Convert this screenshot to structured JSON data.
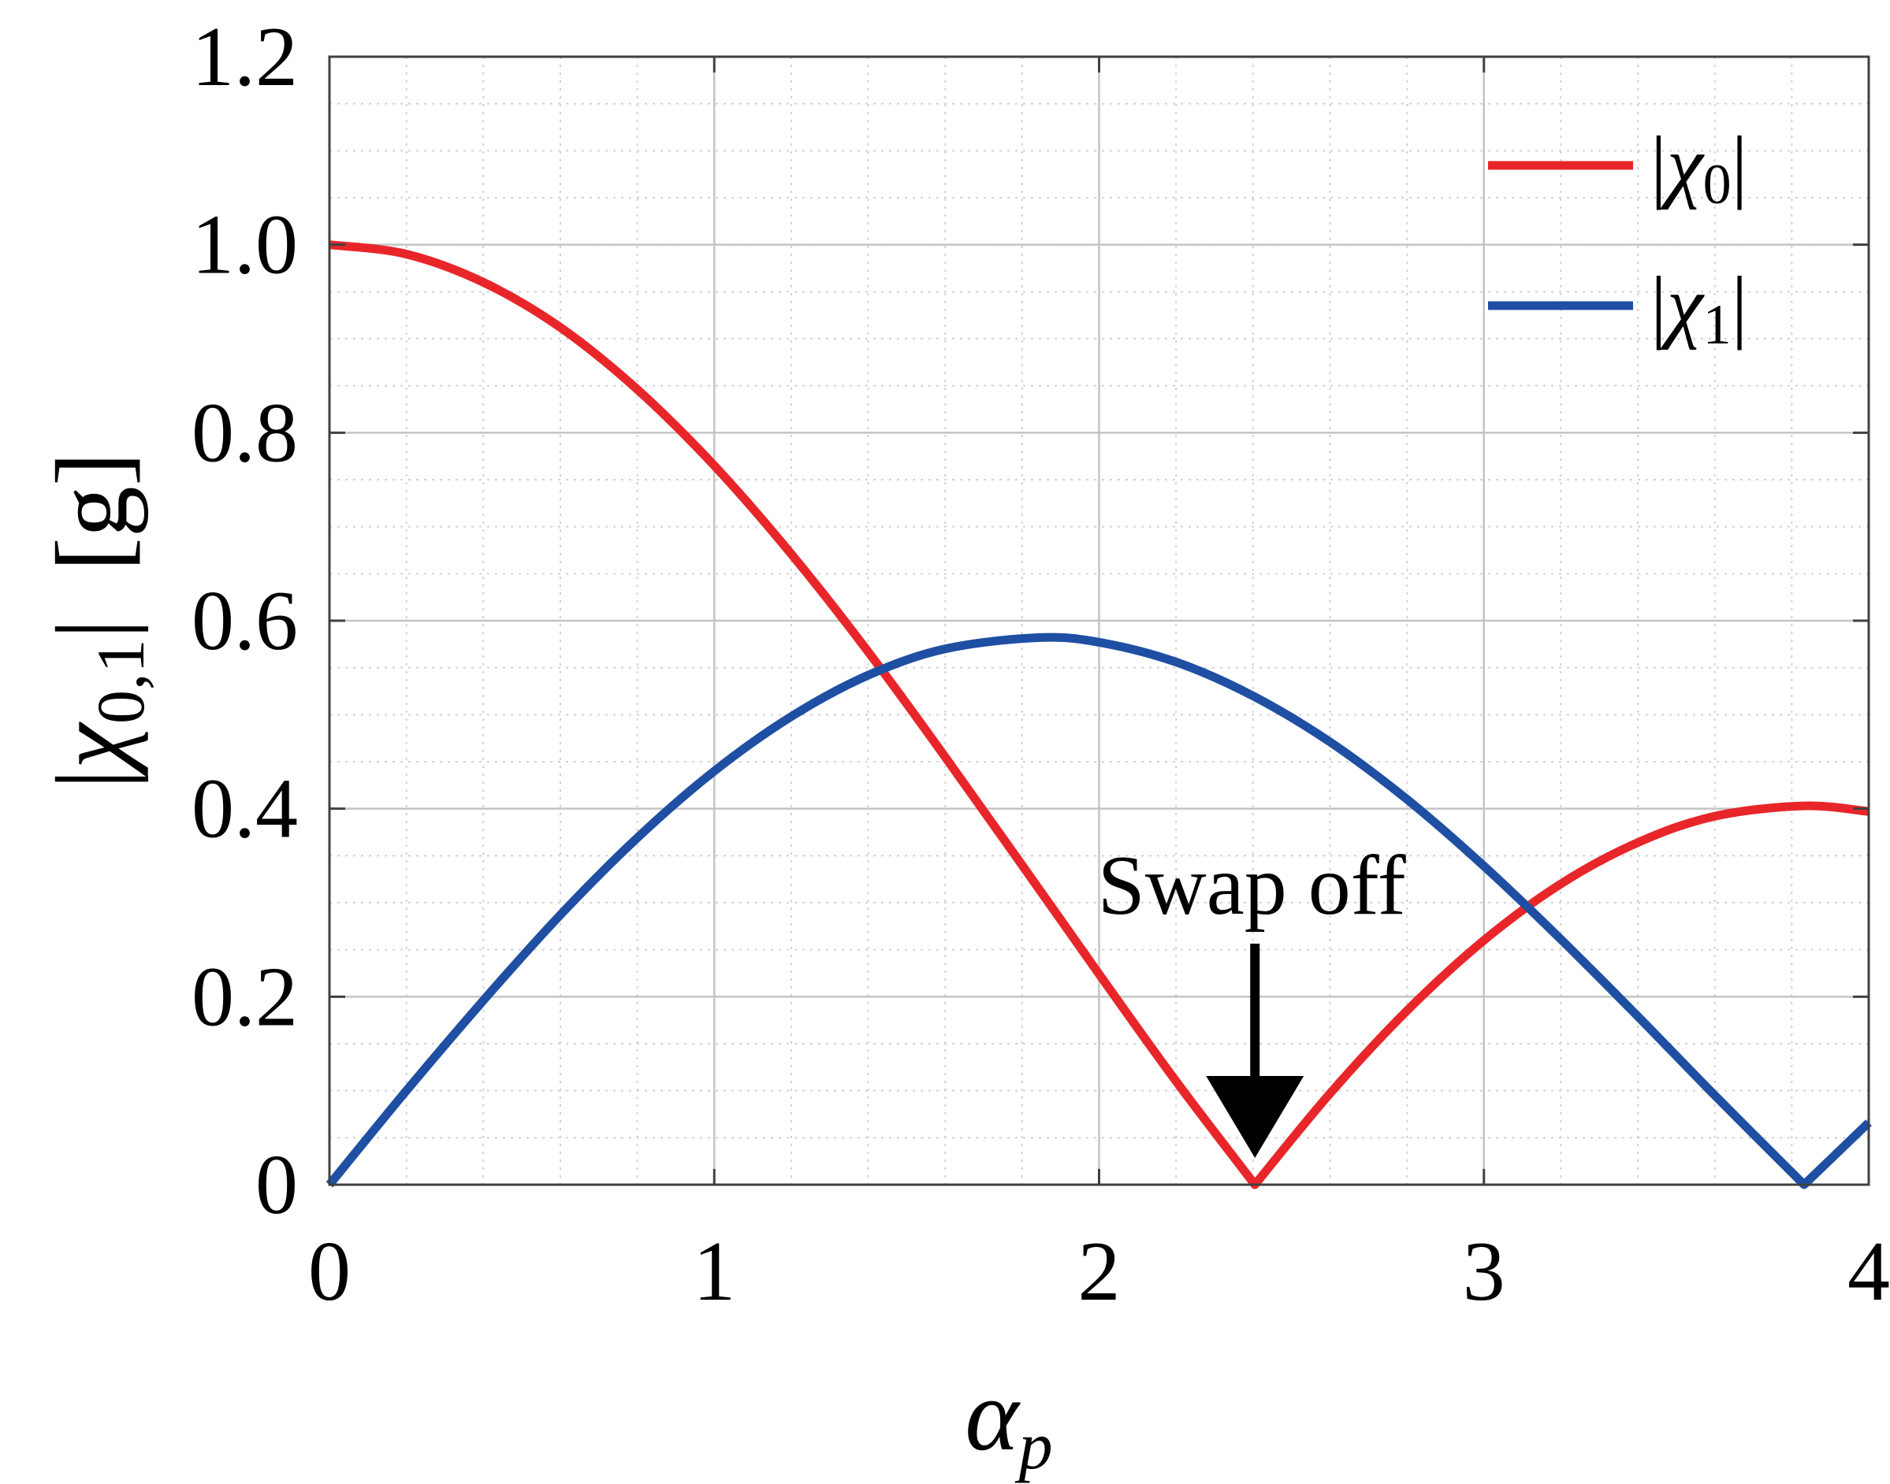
{
  "chart_data": {
    "type": "line",
    "xlabel": "αp",
    "xlabel_base": "α",
    "xlabel_sub": "p",
    "ylabel": "|χ0,1| [g]",
    "ylabel_parts": {
      "abs_open": "|",
      "chi": "χ",
      "sub": "0,1",
      "abs_close": "|",
      "unit": "[g]"
    },
    "xlim": [
      0,
      4
    ],
    "ylim": [
      0,
      1.2
    ],
    "xticks": [
      0,
      1,
      2,
      3,
      4
    ],
    "xtick_labels": [
      "0",
      "1",
      "2",
      "3",
      "4"
    ],
    "yticks": [
      0,
      0.2,
      0.4,
      0.6,
      0.8,
      1.0,
      1.2
    ],
    "ytick_labels": [
      "0",
      "0.2",
      "0.4",
      "0.6",
      "0.8",
      "1.0",
      "1.2"
    ],
    "grid": true,
    "minor_grid": true,
    "legend_position": "top-right",
    "series": [
      {
        "name": "|χ0|",
        "name_parts": {
          "chi": "χ",
          "sub": "0"
        },
        "color": "#e8262a",
        "x": [
          0,
          0.2,
          0.4,
          0.6,
          0.8,
          1.0,
          1.2,
          1.4,
          1.6,
          1.8,
          2.0,
          2.2,
          2.405,
          2.6,
          2.8,
          3.0,
          3.2,
          3.4,
          3.6,
          3.832,
          4.0
        ],
        "y": [
          1.0,
          0.99,
          0.96,
          0.912,
          0.846,
          0.765,
          0.671,
          0.567,
          0.455,
          0.34,
          0.224,
          0.11,
          0.0,
          0.097,
          0.185,
          0.26,
          0.32,
          0.364,
          0.392,
          0.403,
          0.397
        ]
      },
      {
        "name": "|χ1|",
        "name_parts": {
          "chi": "χ",
          "sub": "1"
        },
        "color": "#1f4fa3",
        "x": [
          0,
          0.2,
          0.4,
          0.6,
          0.8,
          1.0,
          1.2,
          1.4,
          1.6,
          1.841,
          2.0,
          2.2,
          2.4,
          2.6,
          2.8,
          3.0,
          3.2,
          3.4,
          3.6,
          3.832,
          4.0
        ],
        "y": [
          0,
          0.1,
          0.196,
          0.287,
          0.369,
          0.44,
          0.498,
          0.542,
          0.57,
          0.582,
          0.577,
          0.556,
          0.52,
          0.471,
          0.41,
          0.339,
          0.261,
          0.179,
          0.095,
          0.0,
          0.066
        ]
      }
    ],
    "annotations": [
      {
        "text": "Swap off",
        "arrow_to_x": 2.405,
        "arrow_to_y": 0.0
      }
    ]
  }
}
